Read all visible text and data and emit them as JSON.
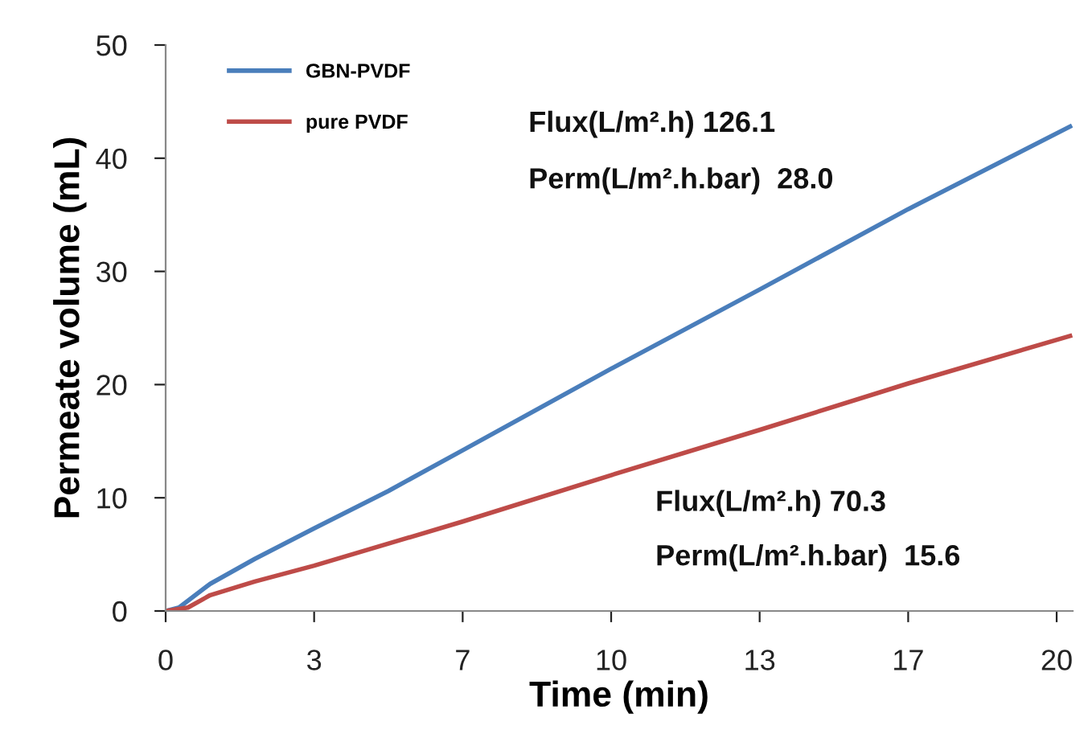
{
  "chart_data": {
    "type": "line",
    "xlabel": "Time (min)",
    "ylabel": "Permeate volume (mL)",
    "xlim": [
      0,
      20.36
    ],
    "ylim": [
      0,
      50
    ],
    "xticks": [
      0,
      {
        "value": 3.333,
        "label": "3"
      },
      {
        "value": 6.667,
        "label": "7"
      },
      10,
      {
        "value": 13.333,
        "label": "13"
      },
      {
        "value": 16.667,
        "label": "17"
      },
      20
    ],
    "yticks": [
      0,
      10,
      20,
      30,
      40,
      50
    ],
    "grid": false,
    "legend": "top left",
    "marker": "none",
    "line_style": "solid",
    "series": [
      {
        "name": "GBN-PVDF",
        "color": "#4a7ebb",
        "x": [
          0,
          0.3,
          1,
          2,
          3.333,
          5,
          6.667,
          10,
          13.333,
          16.667,
          20.3
        ],
        "values": [
          0,
          0.3,
          2.4,
          4.6,
          7.3,
          10.6,
          14.2,
          21.4,
          28.4,
          35.5,
          42.8
        ]
      },
      {
        "name": "pure PVDF",
        "color": "#be4b48",
        "x": [
          0,
          0.5,
          1,
          2,
          3.333,
          6.667,
          10,
          13.333,
          16.667,
          20.3
        ],
        "values": [
          0,
          0.3,
          1.4,
          2.6,
          4.0,
          7.9,
          12.0,
          16.0,
          20.1,
          24.3
        ]
      }
    ],
    "annotations": [
      "Flux(L/m².h) 126.1",
      "Perm(L/m².h.bar)  28.0",
      "Flux(L/m².h) 70.3",
      "Perm(L/m².h.bar)  15.6"
    ]
  }
}
